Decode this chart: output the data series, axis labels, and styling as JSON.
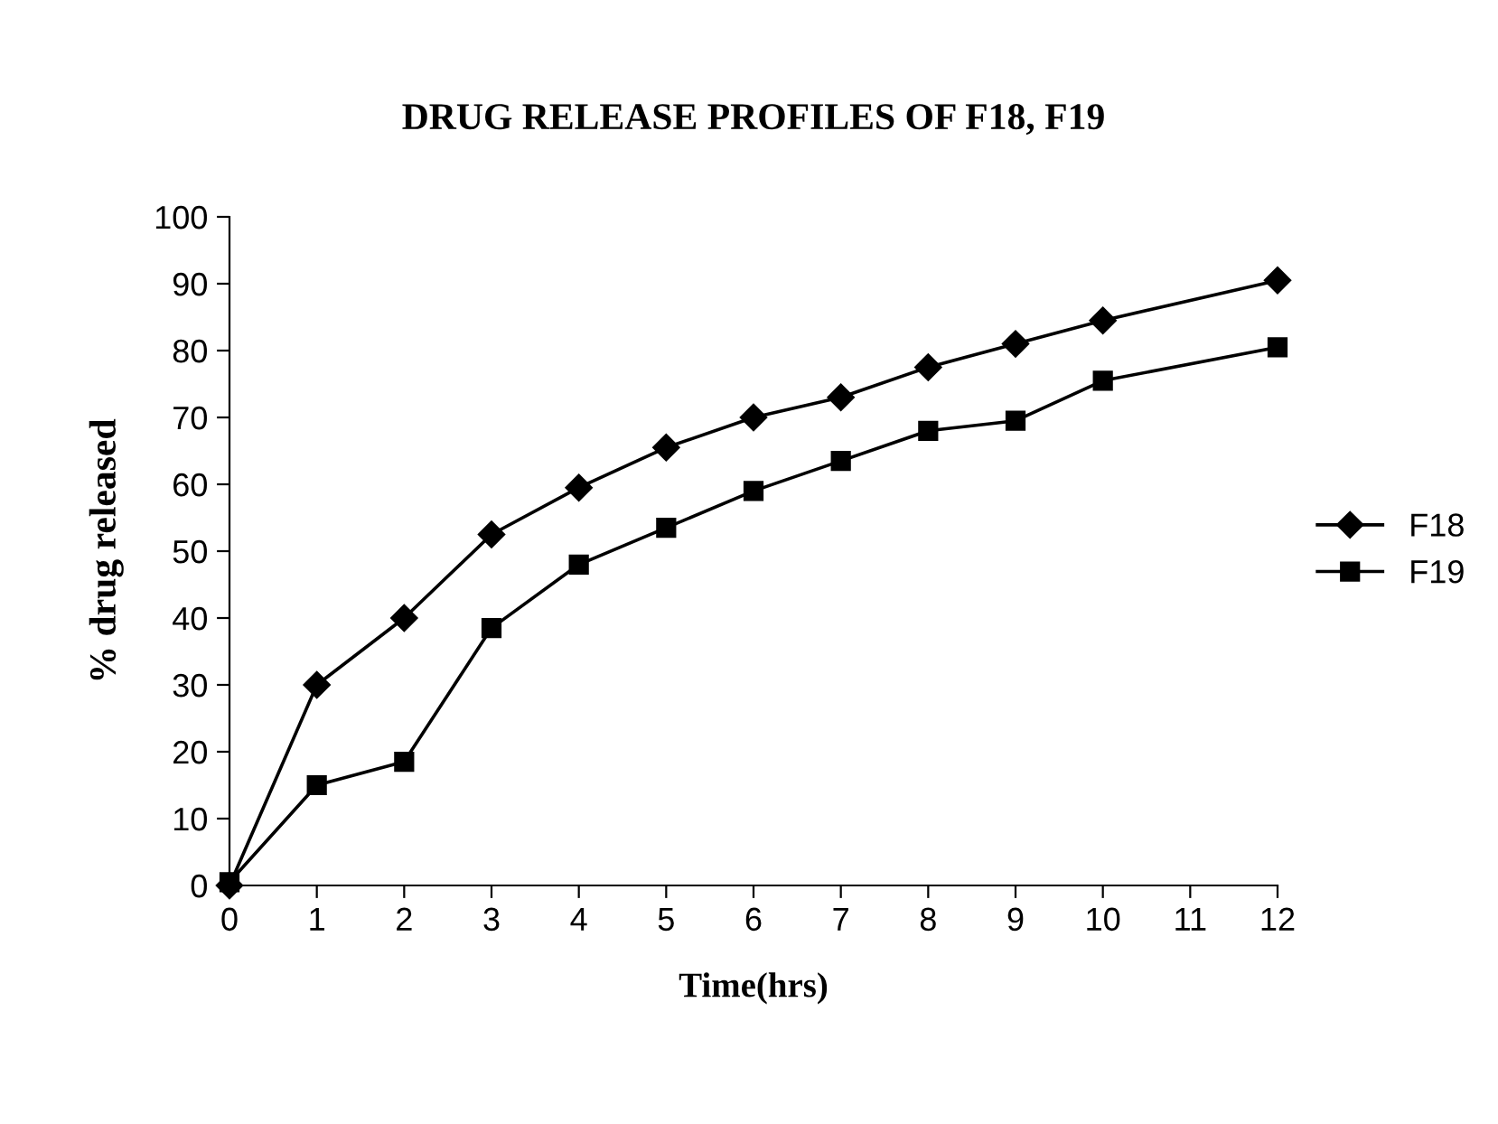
{
  "chart_data": {
    "type": "line",
    "title": "DRUG RELEASE PROFILES OF F18, F19",
    "xlabel": "Time(hrs)",
    "ylabel": "% drug released",
    "x": [
      0,
      1,
      2,
      3,
      4,
      5,
      6,
      7,
      8,
      9,
      10,
      12
    ],
    "series": [
      {
        "name": "F18",
        "color": "#000000",
        "marker": "diamond",
        "values": [
          0,
          30,
          40,
          52.5,
          59.5,
          65.5,
          70,
          73,
          77.5,
          81,
          84.5,
          90.5
        ]
      },
      {
        "name": "F19",
        "color": "#000000",
        "marker": "square",
        "values": [
          0.5,
          15,
          18.5,
          38.5,
          48,
          53.5,
          59,
          63.5,
          68,
          69.5,
          75.5,
          80.5
        ]
      }
    ],
    "xlim": [
      0,
      12
    ],
    "xticks": [
      0,
      1,
      2,
      3,
      4,
      5,
      6,
      7,
      8,
      9,
      10,
      11,
      12
    ],
    "ylim": [
      0,
      100
    ],
    "yticks": [
      0,
      10,
      20,
      30,
      40,
      50,
      60,
      70,
      80,
      90,
      100
    ],
    "grid": false,
    "legend": "right",
    "line_style": "solid"
  }
}
